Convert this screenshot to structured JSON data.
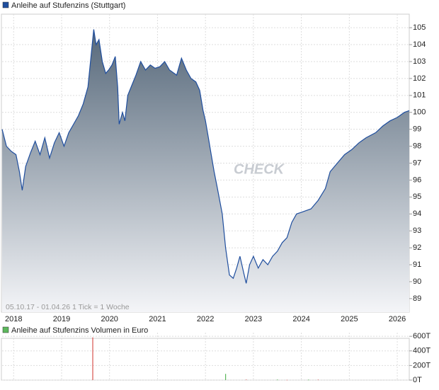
{
  "chart_data": [
    {
      "type": "area",
      "title": "Anleihe auf Stufenzins (Stuttgart)",
      "note": "05.10.17 - 01.04.26   1 Tick = 1 Woche",
      "watermark": "CHECK",
      "color": "#1f4e9e",
      "x": [
        2017.76,
        2017.85,
        2017.95,
        2018.05,
        2018.12,
        2018.18,
        2018.25,
        2018.35,
        2018.45,
        2018.55,
        2018.65,
        2018.75,
        2018.85,
        2018.95,
        2019.05,
        2019.15,
        2019.25,
        2019.35,
        2019.45,
        2019.55,
        2019.62,
        2019.67,
        2019.72,
        2019.78,
        2019.85,
        2019.92,
        2019.98,
        2020.05,
        2020.12,
        2020.17,
        2020.2,
        2020.27,
        2020.32,
        2020.38,
        2020.45,
        2020.55,
        2020.65,
        2020.75,
        2020.85,
        2020.95,
        2021.05,
        2021.15,
        2021.25,
        2021.4,
        2021.5,
        2021.6,
        2021.7,
        2021.8,
        2021.88,
        2021.95,
        2022.0,
        2022.05,
        2022.12,
        2022.18,
        2022.25,
        2022.35,
        2022.42,
        2022.5,
        2022.58,
        2022.65,
        2022.72,
        2022.8,
        2022.85,
        2022.92,
        2023.0,
        2023.1,
        2023.2,
        2023.3,
        2023.4,
        2023.5,
        2023.6,
        2023.7,
        2023.8,
        2023.9,
        2024.0,
        2024.2,
        2024.35,
        2024.5,
        2024.6,
        2024.75,
        2024.9,
        2025.05,
        2025.2,
        2025.35,
        2025.55,
        2025.7,
        2025.85,
        2026.0,
        2026.15,
        2026.25
      ],
      "values": [
        99.0,
        98.0,
        97.7,
        97.5,
        96.5,
        95.4,
        96.8,
        97.6,
        98.3,
        97.5,
        98.5,
        97.3,
        98.2,
        98.8,
        98.0,
        98.8,
        99.3,
        99.8,
        100.5,
        101.5,
        103.5,
        104.9,
        104.0,
        104.3,
        103.0,
        102.3,
        102.5,
        102.8,
        103.3,
        101.5,
        99.3,
        100.0,
        99.5,
        101.0,
        101.5,
        102.2,
        103.0,
        102.5,
        102.8,
        102.6,
        102.7,
        103.0,
        102.5,
        102.2,
        103.2,
        102.5,
        102.0,
        101.8,
        101.3,
        100.1,
        99.5,
        98.7,
        97.5,
        96.5,
        95.5,
        94.0,
        92.0,
        90.4,
        90.2,
        90.8,
        91.5,
        90.5,
        89.9,
        91.0,
        91.5,
        90.8,
        91.3,
        91.0,
        91.5,
        91.8,
        92.3,
        92.6,
        93.5,
        94.0,
        94.1,
        94.3,
        94.8,
        95.5,
        96.5,
        97.0,
        97.5,
        97.8,
        98.2,
        98.5,
        98.8,
        99.2,
        99.5,
        99.7,
        100.0,
        100.1
      ],
      "xlim": [
        2017.76,
        2026.25
      ],
      "xticks": [
        2018,
        2019,
        2020,
        2021,
        2022,
        2023,
        2024,
        2025,
        2026
      ],
      "ylim": [
        88.2,
        105.8
      ],
      "yticks": [
        89,
        90,
        91,
        92,
        93,
        94,
        95,
        96,
        97,
        98,
        99,
        100,
        101,
        102,
        103,
        104,
        105
      ]
    },
    {
      "type": "bar",
      "title": "Anleihe auf Stufenzins Volumen in Euro",
      "color": "#5cb85c",
      "x": [
        2019.65,
        2022.42,
        2022.85,
        2023.5,
        2023.7,
        2024.15,
        2024.35
      ],
      "values": [
        585,
        85,
        10,
        8,
        5,
        7,
        9
      ],
      "colors": [
        "#d9534f",
        "#5cb85c",
        "#e08080",
        "#5cb85c",
        "#e08080",
        "#5cb85c",
        "#e08080"
      ],
      "xlim": [
        2017.76,
        2026.25
      ],
      "xticks": [
        2018,
        2019,
        2020,
        2021,
        2022,
        2023,
        2024,
        2025,
        2026
      ],
      "ylim": [
        0,
        650
      ],
      "yticks": [
        {
          "value": 0,
          "label": "0T"
        },
        {
          "value": 200,
          "label": "200T"
        },
        {
          "value": 400,
          "label": "400T"
        },
        {
          "value": 600,
          "label": "600T"
        }
      ]
    }
  ]
}
